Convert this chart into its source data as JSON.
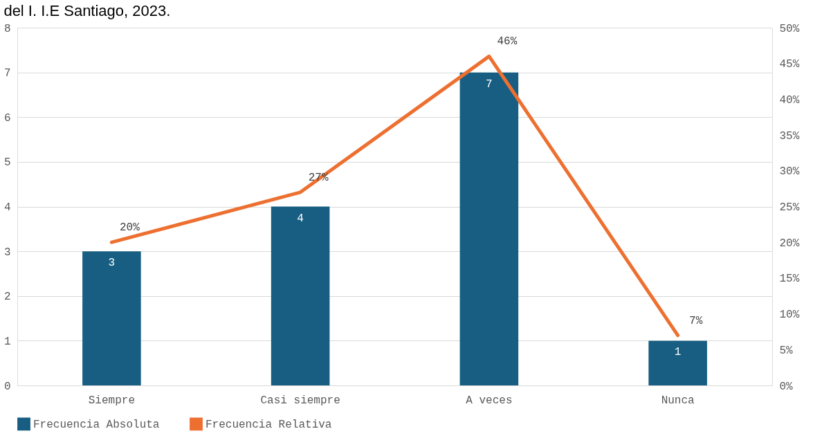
{
  "chart_data": {
    "type": "bar",
    "title": "del I. I.E Santiago, 2023.",
    "categories": [
      "Siempre",
      "Casi siempre",
      "A veces",
      "Nunca"
    ],
    "series": [
      {
        "name": "Frecuencia Absoluta",
        "type": "bar",
        "color": "#175e82",
        "values": [
          3,
          4,
          7,
          1
        ],
        "value_labels": [
          "3",
          "4",
          "7",
          "1"
        ]
      },
      {
        "name": "Frecuencia Relativa",
        "type": "line",
        "axis": "y2",
        "color": "#ed7031",
        "values": [
          20,
          27,
          46,
          7
        ],
        "value_labels": [
          "20%",
          "27%",
          "46%",
          "7%"
        ]
      }
    ],
    "ylim": [
      0,
      8
    ],
    "yticks": [
      0,
      1,
      2,
      3,
      4,
      5,
      6,
      7,
      8
    ],
    "y2lim": [
      0,
      50
    ],
    "y2ticks": [
      {
        "value": 0,
        "label": "0%"
      },
      {
        "value": 5,
        "label": "5%"
      },
      {
        "value": 10,
        "label": "10%"
      },
      {
        "value": 15,
        "label": "15%"
      },
      {
        "value": 20,
        "label": "20%"
      },
      {
        "value": 25,
        "label": "25%"
      },
      {
        "value": 30,
        "label": "30%"
      },
      {
        "value": 35,
        "label": "35%"
      },
      {
        "value": 40,
        "label": "40%"
      },
      {
        "value": 45,
        "label": "45%"
      },
      {
        "value": 50,
        "label": "50%"
      }
    ],
    "grid": "y",
    "legend": "bottom",
    "marker": "none",
    "line_style": "solid"
  }
}
